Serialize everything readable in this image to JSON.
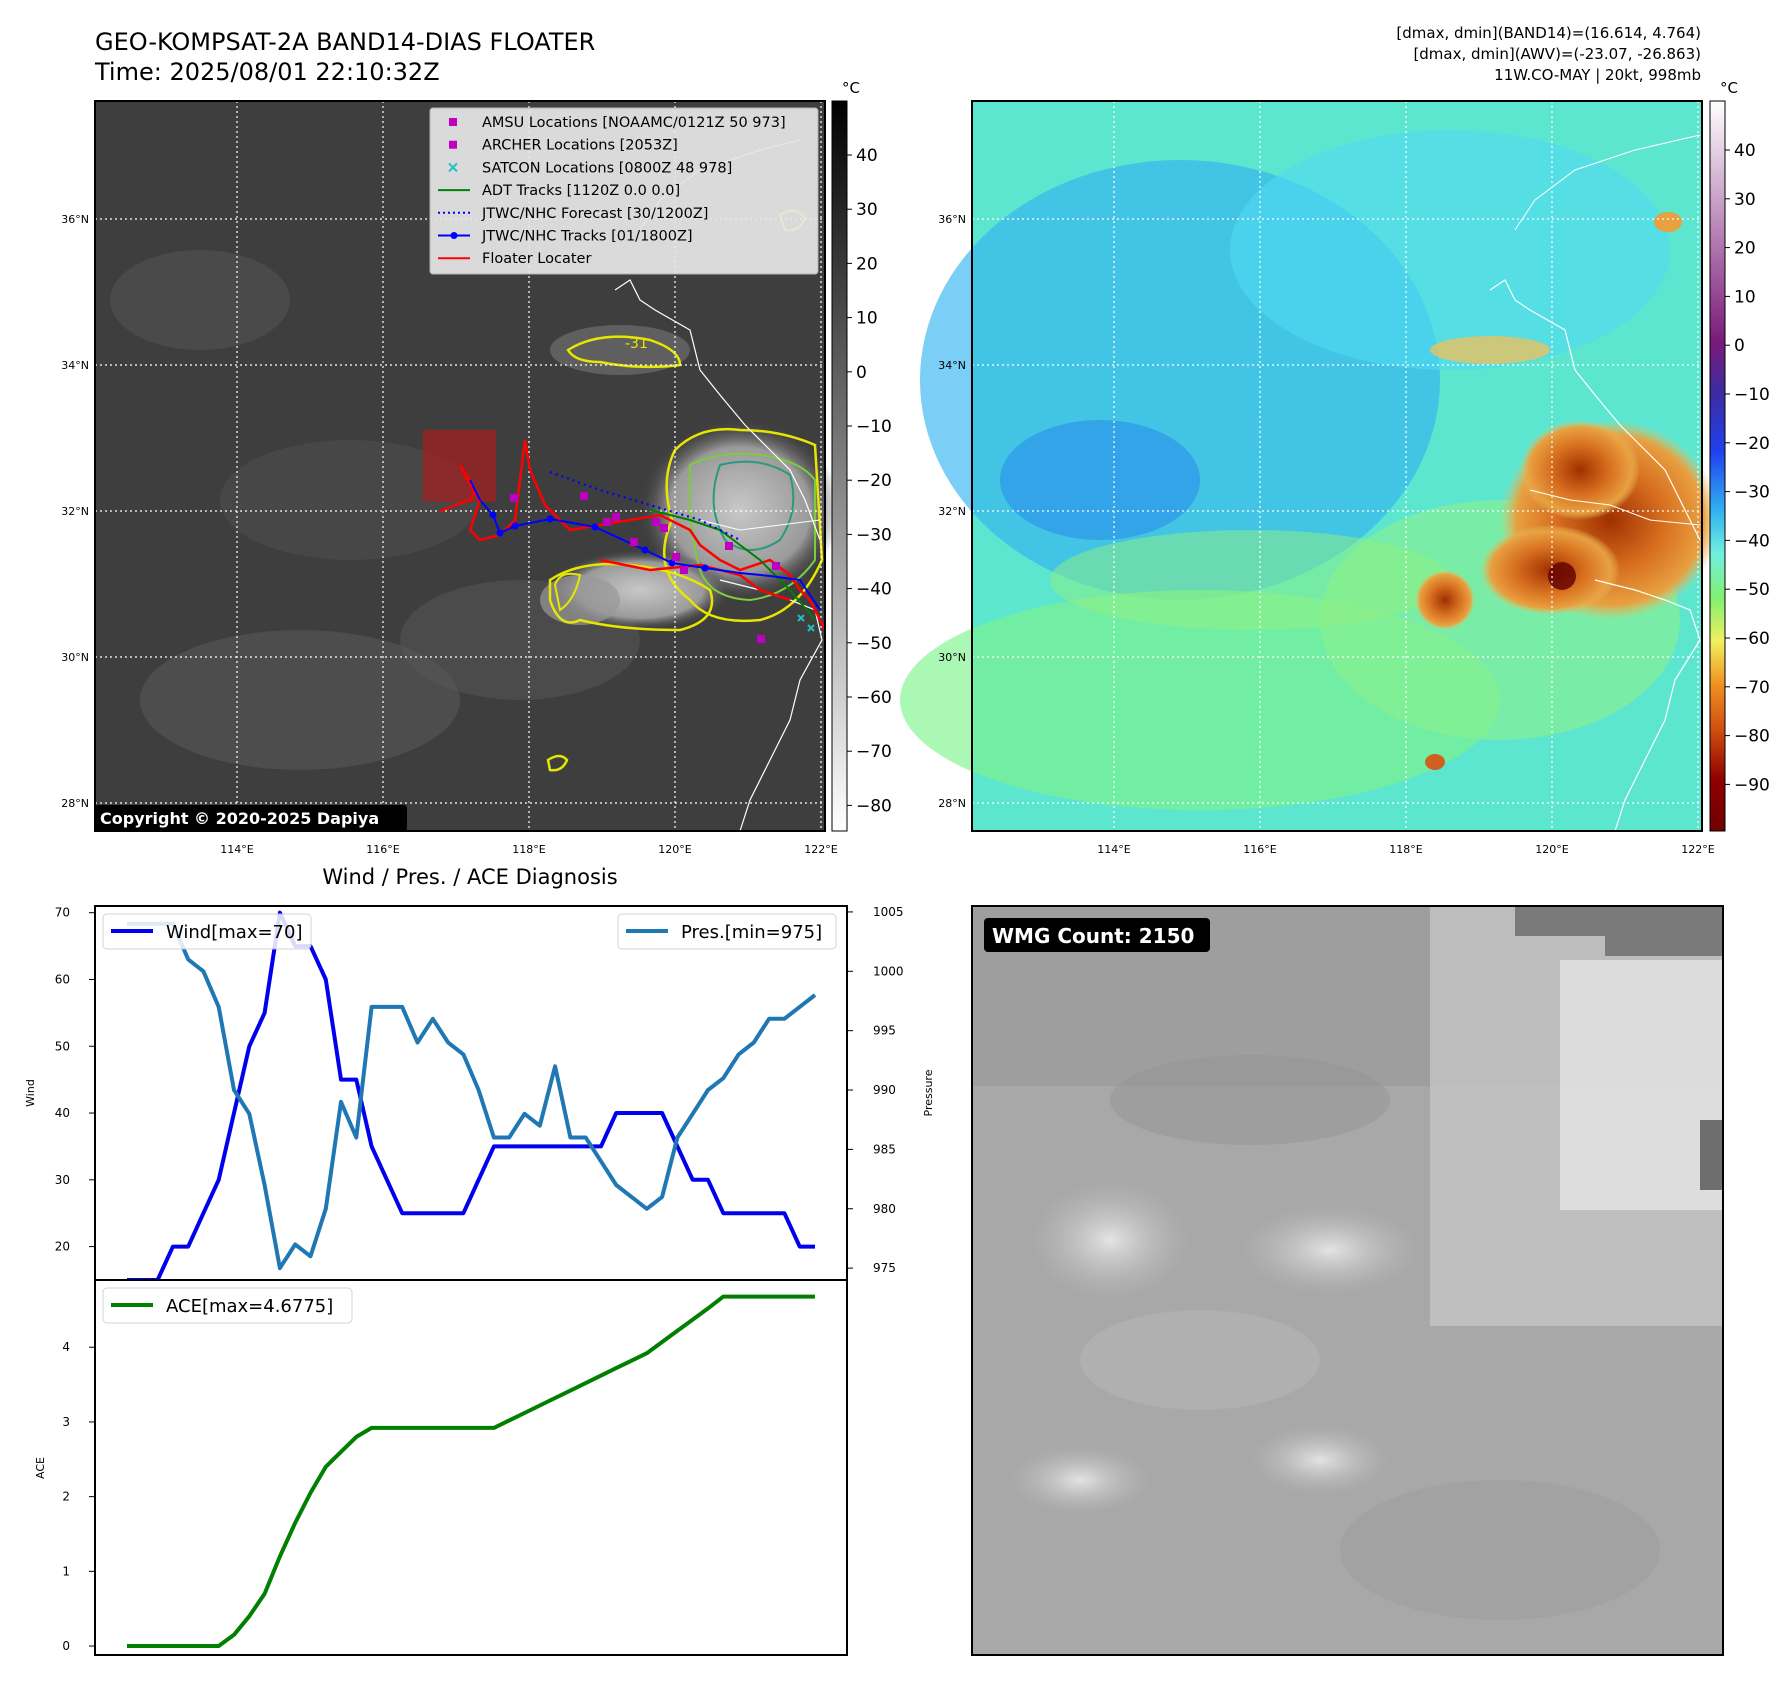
{
  "header": {
    "title_line1": "GEO-KOMPSAT-2A BAND14-DIAS FLOATER",
    "title_line2": "Time: 2025/08/01 22:10:32Z",
    "info_line1": "[dmax, dmin](BAND14)=(16.614, 4.764)",
    "info_line2": "[dmax, dmin](AWV)=(-23.07, -26.863)",
    "info_line3": "11W.CO-MAY | 20kt, 998mb"
  },
  "copyright": "Copyright © 2020-2025 Dapiya",
  "colorbar": {
    "unit": "°C",
    "ir_ticks": [
      "40",
      "30",
      "20",
      "10",
      "0",
      "−10",
      "−20",
      "−30",
      "−40",
      "−50",
      "−60",
      "−70",
      "−80"
    ],
    "wv_ticks": [
      "40",
      "30",
      "20",
      "10",
      "0",
      "−10",
      "−20",
      "−30",
      "−40",
      "−50",
      "−60",
      "−70",
      "−80",
      "−90"
    ]
  },
  "map": {
    "lat_ticks": [
      "36°N",
      "34°N",
      "32°N",
      "30°N",
      "28°N"
    ],
    "lon_ticks": [
      "114°E",
      "116°E",
      "118°E",
      "120°E",
      "122°E"
    ],
    "contour_label": "-31"
  },
  "legend": {
    "items": [
      {
        "label": "AMSU Locations [NOAAMC/0121Z 50 973]",
        "color": "#c000c0",
        "kind": "square"
      },
      {
        "label": "ARCHER Locations [2053Z]",
        "color": "#c000c0",
        "kind": "square"
      },
      {
        "label": "SATCON Locations [0800Z 48 978]",
        "color": "#20c0c0",
        "kind": "x"
      },
      {
        "label": "ADT Tracks [1120Z 0.0 0.0]",
        "color": "#008000",
        "kind": "line"
      },
      {
        "label": "JTWC/NHC Forecast [30/1200Z]",
        "color": "#0000ff",
        "kind": "dotted"
      },
      {
        "label": "JTWC/NHC Tracks [01/1800Z]",
        "color": "#0000ff",
        "kind": "line-dot"
      },
      {
        "label": "Floater Locater",
        "color": "#ff0000",
        "kind": "line"
      }
    ]
  },
  "wmg": {
    "label": "WMG Count: 2150"
  },
  "chart_data": [
    {
      "type": "line",
      "title": "Wind / Pres. / ACE Diagnosis",
      "ylabel": "Wind",
      "y2label": "Pressure",
      "ylim": [
        15,
        71
      ],
      "y2lim": [
        974,
        1005.5
      ],
      "yticks": [
        20,
        30,
        40,
        50,
        60,
        70
      ],
      "y2ticks": [
        975,
        980,
        985,
        990,
        995,
        1000,
        1005
      ],
      "legend_left": "Wind[max=70]",
      "legend_right": "Pres.[min=975]",
      "series": [
        {
          "name": "Wind[max=70]",
          "color": "#0000ee",
          "axis": "left",
          "values": [
            15,
            15,
            15,
            20,
            20,
            25,
            30,
            40,
            50,
            55,
            70,
            65,
            65,
            60,
            45,
            45,
            35,
            30,
            25,
            25,
            25,
            25,
            25,
            30,
            35,
            35,
            35,
            35,
            35,
            35,
            35,
            35,
            40,
            40,
            40,
            40,
            35,
            30,
            30,
            25,
            25,
            25,
            25,
            25,
            20,
            20
          ]
        },
        {
          "name": "Pres.[min=975]",
          "color": "#1f77b4",
          "axis": "right",
          "values": [
            1004,
            1004,
            1004,
            1004,
            1001,
            1000,
            997,
            990,
            988,
            982,
            975,
            977,
            976,
            980,
            989,
            986,
            997,
            997,
            997,
            994,
            996,
            994,
            993,
            990,
            986,
            986,
            988,
            987,
            992,
            986,
            986,
            984,
            982,
            981,
            980,
            981,
            986,
            988,
            990,
            991,
            993,
            994,
            996,
            996,
            997,
            998
          ]
        }
      ]
    },
    {
      "type": "line",
      "ylabel": "ACE",
      "ylim": [
        -0.12,
        4.9
      ],
      "yticks": [
        0,
        1,
        2,
        3,
        4
      ],
      "series": [
        {
          "name": "ACE[max=4.6775]",
          "color": "#008000",
          "values": [
            0,
            0,
            0,
            0,
            0,
            0,
            0,
            0.15,
            0.4,
            0.7,
            1.2,
            1.65,
            2.05,
            2.4,
            2.6,
            2.8,
            2.92,
            2.92,
            2.92,
            2.92,
            2.92,
            2.92,
            2.92,
            2.92,
            2.92,
            3.02,
            3.12,
            3.22,
            3.32,
            3.42,
            3.52,
            3.62,
            3.72,
            3.82,
            3.92,
            4.07,
            4.22,
            4.37,
            4.52,
            4.6775,
            4.6775,
            4.6775,
            4.6775,
            4.6775,
            4.6775,
            4.6775
          ]
        }
      ]
    }
  ]
}
